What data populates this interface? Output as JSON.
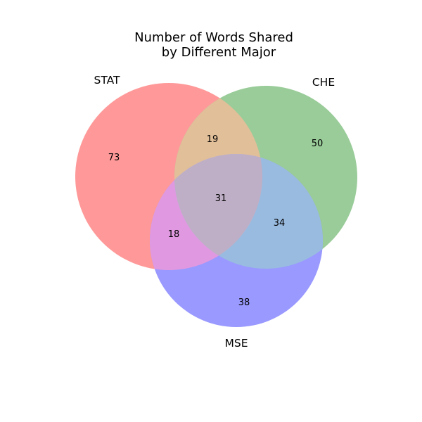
{
  "chart_data": {
    "type": "venn",
    "title_lines": [
      "Number of Words Shared",
      "by Different Major"
    ],
    "sets": [
      {
        "name": "STAT",
        "color": "#ff9999"
      },
      {
        "name": "CHE",
        "color": "#99cc99"
      },
      {
        "name": "MSE",
        "color": "#9999ff"
      }
    ],
    "regions": {
      "STAT_only": 73,
      "CHE_only": 50,
      "MSE_only": 38,
      "STAT_CHE": 19,
      "STAT_MSE": 18,
      "CHE_MSE": 34,
      "STAT_CHE_MSE": 31
    },
    "overlap_colors": {
      "STAT_CHE": "#e1bf99",
      "STAT_MSE": "#e099e0",
      "CHE_MSE": "#99bbe0",
      "STAT_CHE_MSE": "#bfafc6"
    }
  }
}
